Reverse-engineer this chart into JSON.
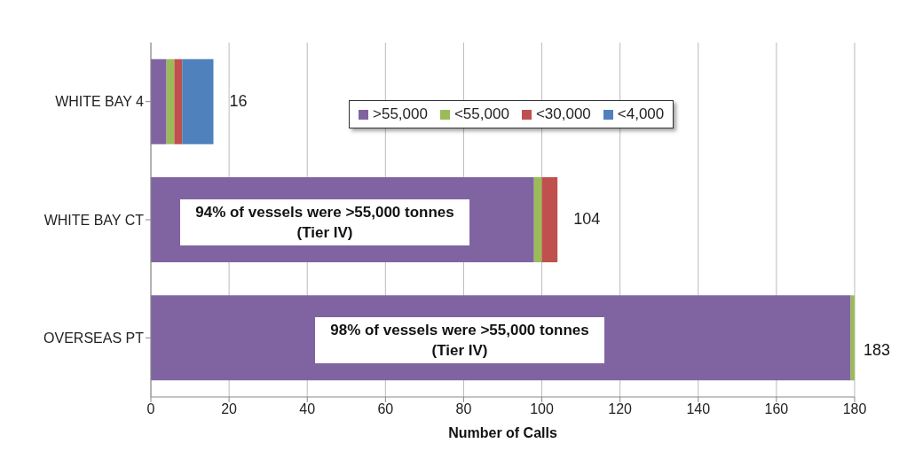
{
  "chart_data": {
    "type": "bar",
    "orientation": "horizontal",
    "stacked": true,
    "xlabel": "Number of Calls",
    "categories": [
      "WHITE BAY 4",
      "WHITE BAY CT",
      "OVERSEAS PT"
    ],
    "series": [
      {
        "name": ">55,000",
        "color": "#8064a2",
        "values": [
          4,
          98,
          179
        ]
      },
      {
        "name": "<55,000",
        "color": "#9bbb59",
        "values": [
          2,
          2,
          1
        ]
      },
      {
        "name": "<30,000",
        "color": "#c0504d",
        "values": [
          2,
          4,
          0
        ]
      },
      {
        "name": "<4,000",
        "color": "#4f81bd",
        "values": [
          8,
          0,
          0
        ]
      }
    ],
    "totals": [
      "16",
      "104",
      null
    ],
    "xlim": [
      0,
      180
    ],
    "xticks": [
      0,
      20,
      40,
      60,
      80,
      100,
      120,
      140,
      160,
      180
    ],
    "grid": "x",
    "legend": "top",
    "annotations": [
      "94% of vessels were >55,000 tonnes (Tier IV)",
      "98% of vessels were >55,000 tonnes (Tier IV)",
      "183"
    ]
  }
}
